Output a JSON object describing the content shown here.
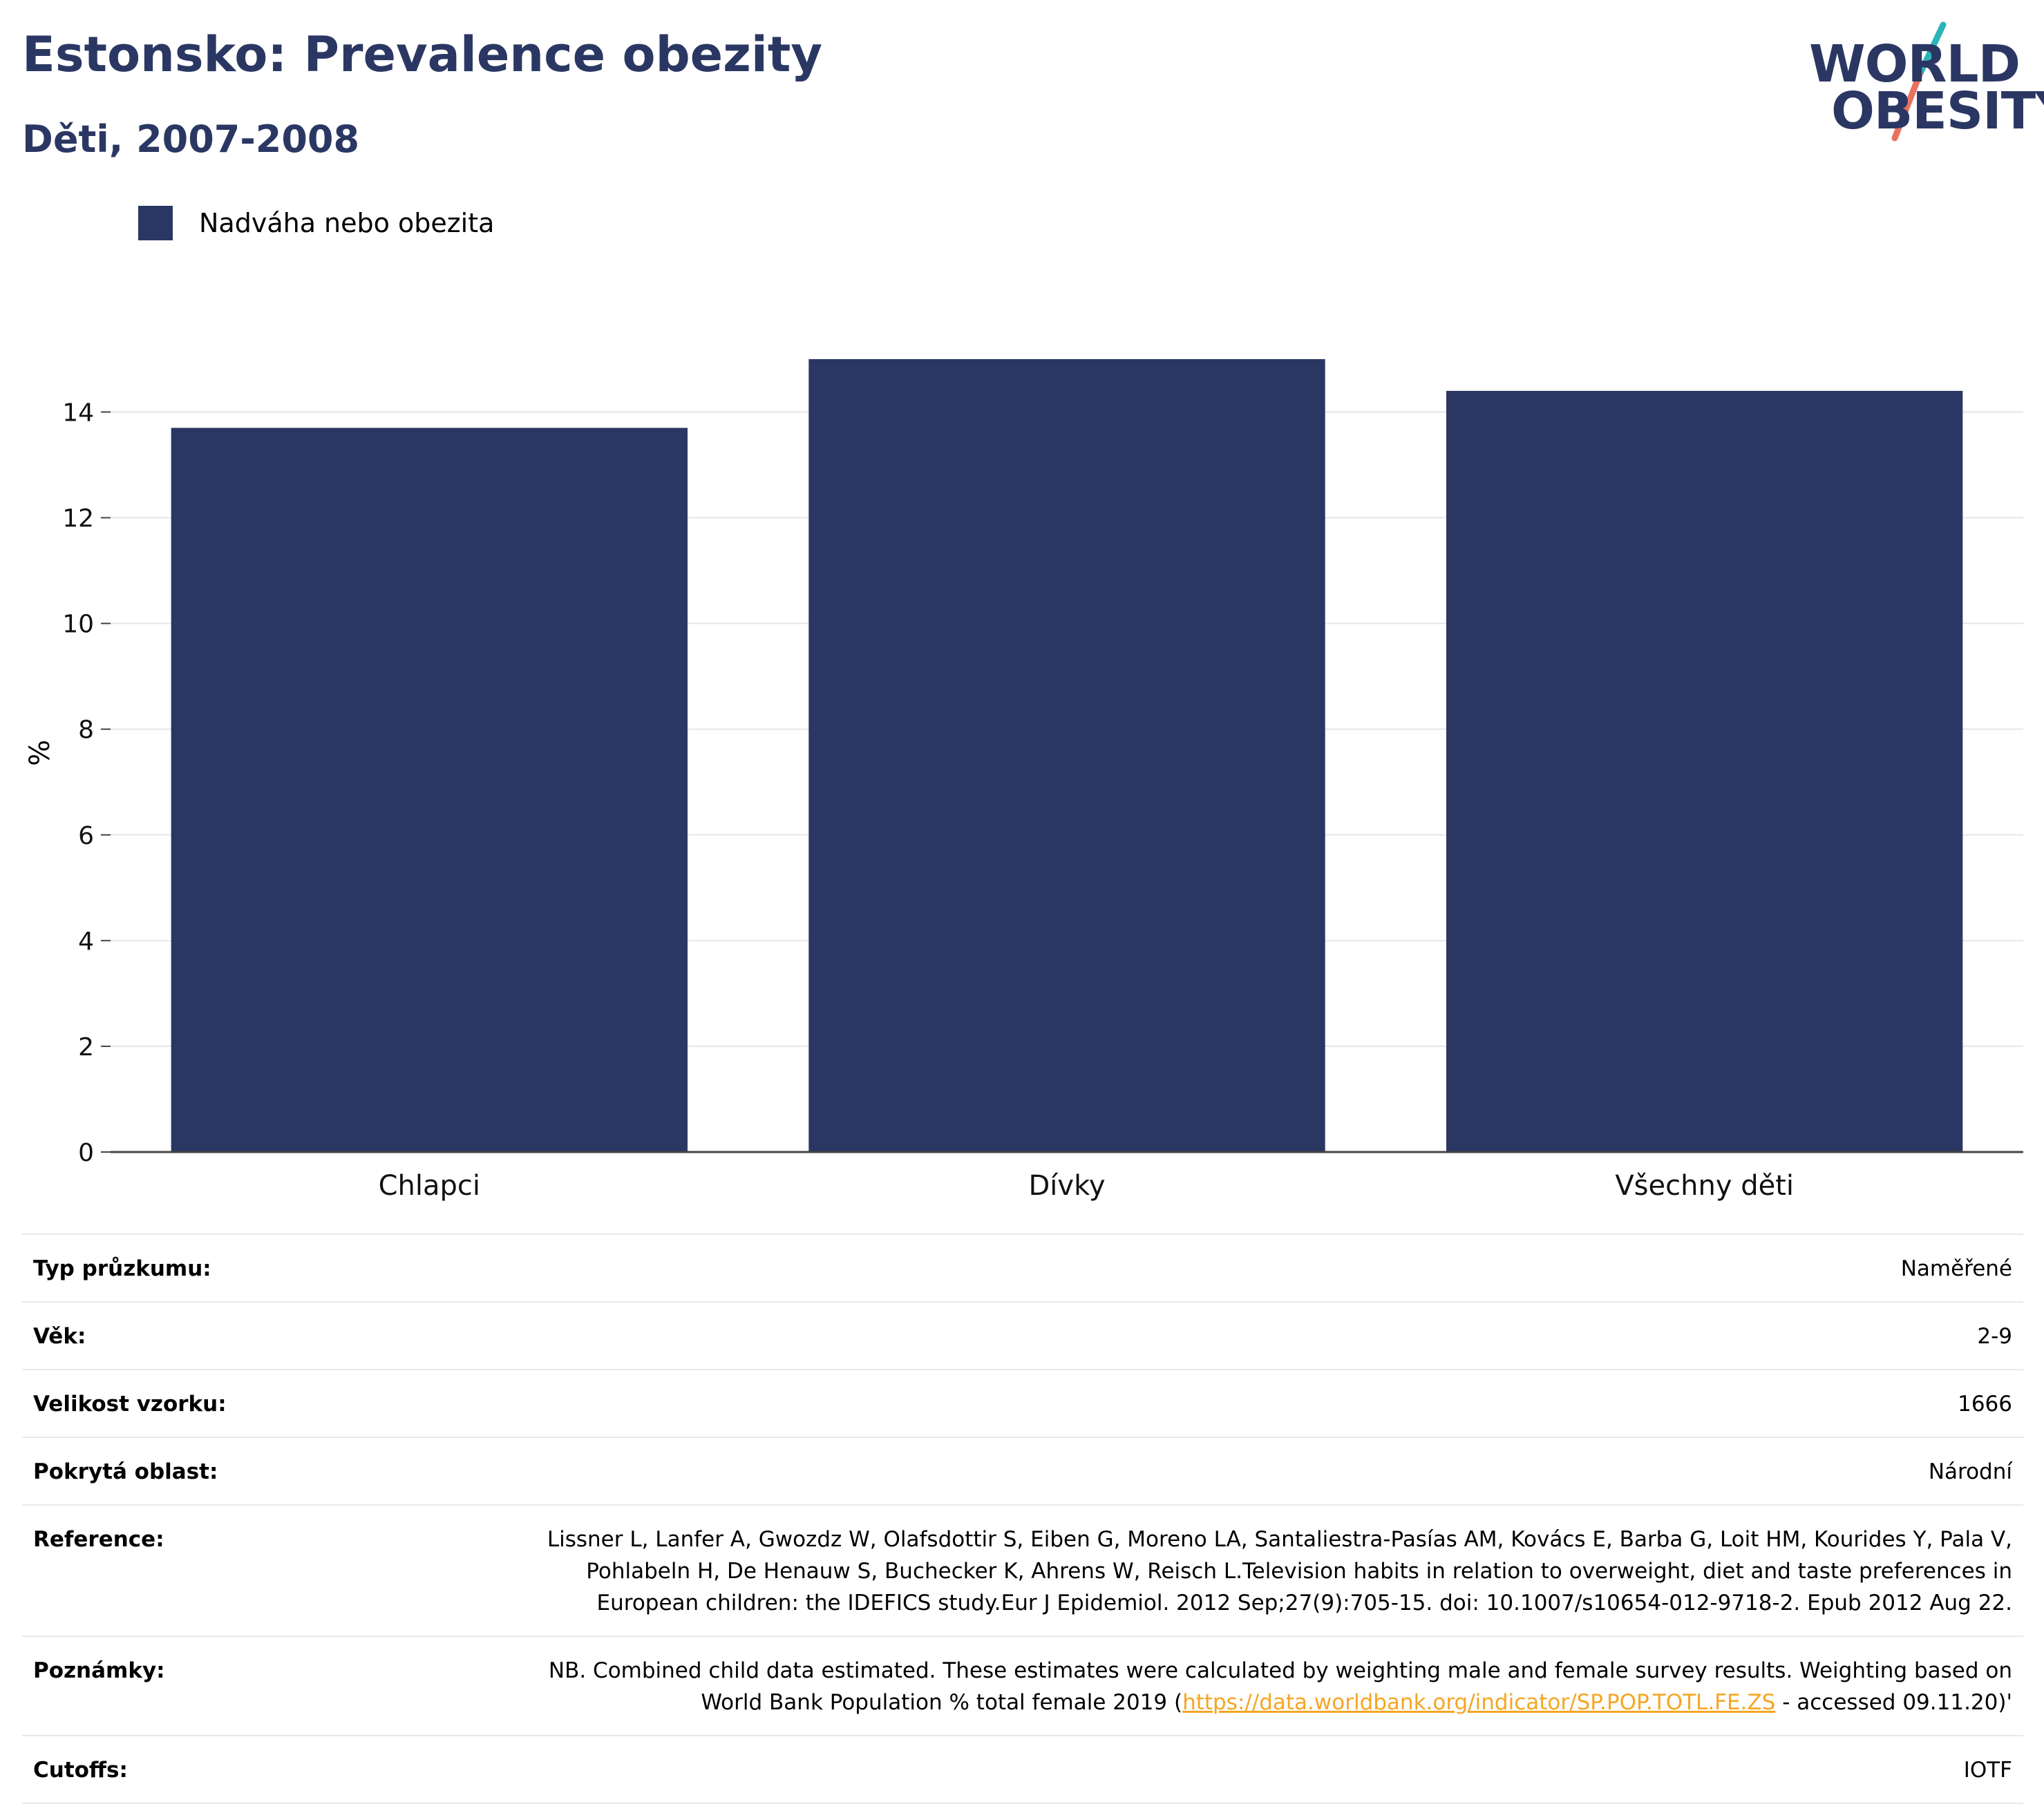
{
  "header": {
    "title": "Estonsko: Prevalence obezity",
    "subtitle": "Děti, 2007-2008"
  },
  "logo": {
    "line1": "WORLD",
    "line2": "OBESITY",
    "slash_colors": [
      "#2bb5b8",
      "#e8725f"
    ]
  },
  "colors": {
    "bar": "#2b3763",
    "title": "#2b3763",
    "grid": "#e6e6e6",
    "link": "#f5a623"
  },
  "chart_data": {
    "type": "bar",
    "categories": [
      "Chlapci",
      "Dívky",
      "Všechny děti"
    ],
    "series": [
      {
        "name": "Nadváha nebo obezita",
        "values": [
          13.7,
          15.0,
          14.4
        ]
      }
    ],
    "ylabel": "%",
    "xlabel": "",
    "ylim": [
      0,
      15
    ],
    "yticks": [
      0,
      2,
      4,
      6,
      8,
      10,
      12,
      14
    ],
    "grid": true,
    "legend_position": "top-left"
  },
  "meta": {
    "rows": [
      {
        "label": "Typ průzkumu:",
        "value": "Naměřené"
      },
      {
        "label": "Věk:",
        "value": "2-9"
      },
      {
        "label": "Velikost vzorku:",
        "value": "1666"
      },
      {
        "label": "Pokrytá oblast:",
        "value": "Národní"
      },
      {
        "label": "Reference:",
        "value": "Lissner L, Lanfer A, Gwozdz W, Olafsdottir S, Eiben G, Moreno LA, Santaliestra-Pasías AM, Kovács E, Barba G, Loit HM, Kourides Y, Pala V, Pohlabeln H, De Henauw S, Buchecker K, Ahrens W, Reisch L.Television habits in relation to overweight, diet and taste preferences in European children: the IDEFICS study.Eur J Epidemiol. 2012 Sep;27(9):705-15. doi: 10.1007/s10654-012-9718-2. Epub 2012 Aug 22."
      }
    ],
    "notes": {
      "label": "Poznámky:",
      "before": "NB. Combined child data estimated. These estimates were calculated by weighting male and female survey results. Weighting based on World Bank Population % total female 2019 (",
      "link": "https://data.worldbank.org/indicator/SP.POP.TOTL.FE.ZS",
      "after": " - accessed 09.11.20)'"
    },
    "cutoffs": {
      "label": "Cutoffs:",
      "value": "IOTF"
    }
  }
}
